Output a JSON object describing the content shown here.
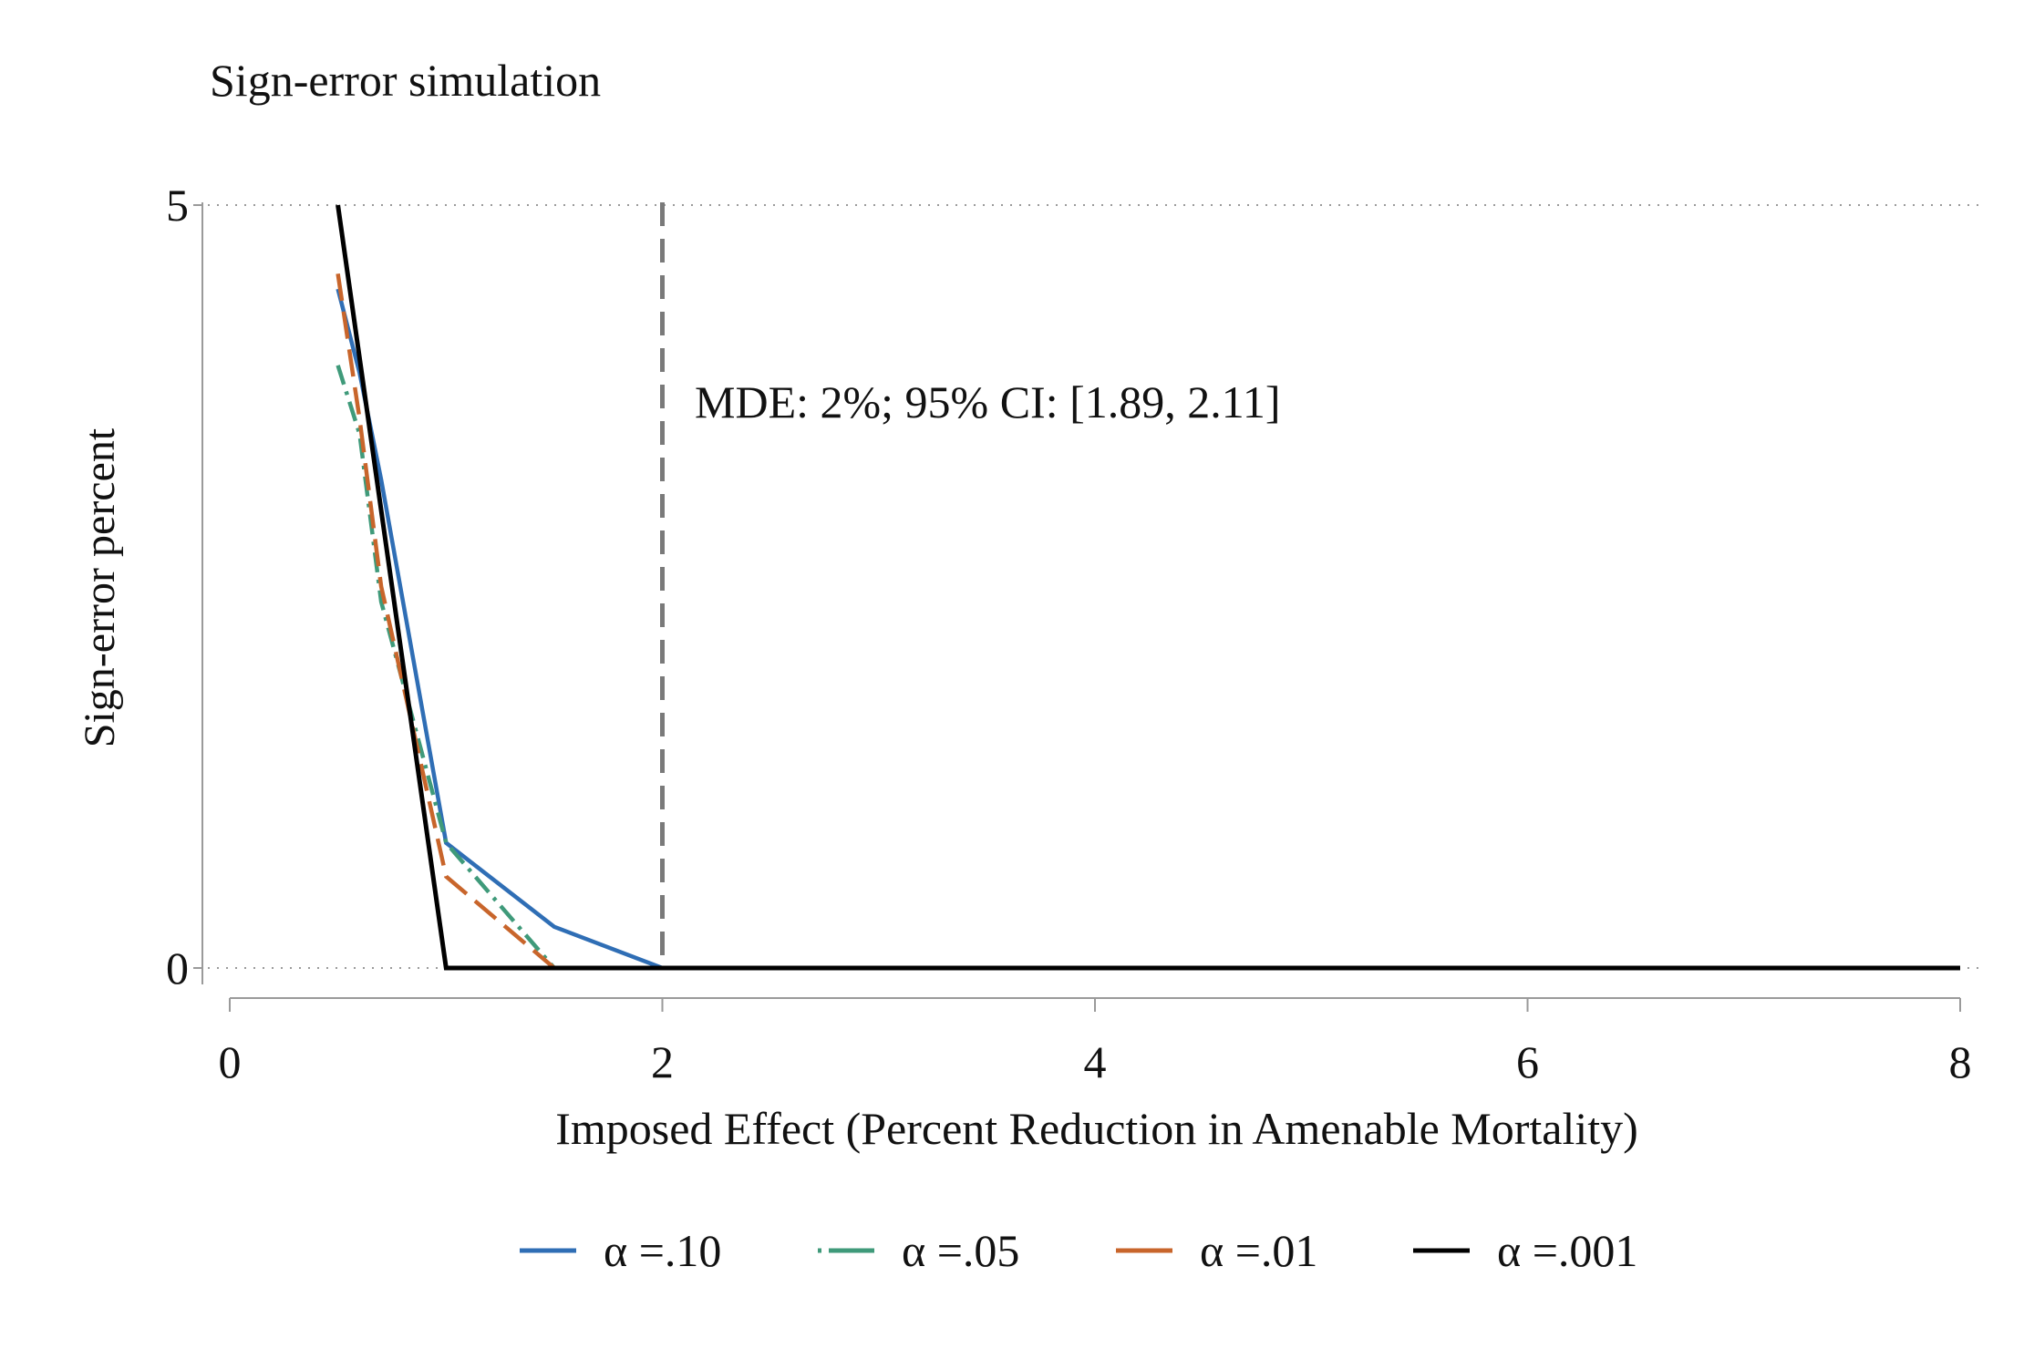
{
  "chart_data": {
    "type": "line",
    "title": "Sign-error simulation",
    "xlabel": "Imposed Effect (Percent Reduction in Amenable Mortality)",
    "ylabel": "Sign-error percent",
    "xlim": [
      0,
      8
    ],
    "ylim": [
      0,
      5
    ],
    "x_ticks": [
      "0",
      "2",
      "4",
      "6",
      "8"
    ],
    "y_ticks": [
      "0",
      "5"
    ],
    "grid": "horizontal dotted at y ticks",
    "legend_position": "bottom",
    "annotation": {
      "text": "MDE: 2%; 95% CI: [1.89, 2.11]",
      "vline_x": 2
    },
    "series": [
      {
        "name": "α =.10",
        "color": "#2f6eb5",
        "style": "solid",
        "x": [
          0.5,
          0.6,
          0.7,
          1.0,
          1.5,
          2,
          3,
          4,
          5,
          6,
          7,
          8
        ],
        "y": [
          4.45,
          3.9,
          3.2,
          0.82,
          0.27,
          0.0,
          0,
          0,
          0,
          0,
          0,
          0
        ]
      },
      {
        "name": "α =.05",
        "color": "#3f9a7a",
        "style": "dashdot",
        "x": [
          0.5,
          0.6,
          0.7,
          1.0,
          1.5,
          2,
          3,
          4,
          5,
          6,
          7,
          8
        ],
        "y": [
          3.95,
          3.5,
          2.4,
          0.82,
          0.0,
          0.0,
          0,
          0,
          0,
          0,
          0,
          0
        ]
      },
      {
        "name": "α =.01",
        "color": "#c8652b",
        "style": "longdash",
        "x": [
          0.5,
          0.6,
          0.7,
          1.0,
          1.5,
          2,
          3,
          4,
          5,
          6,
          7,
          8
        ],
        "y": [
          4.55,
          3.6,
          2.5,
          0.6,
          0.0,
          0.0,
          0,
          0,
          0,
          0,
          0,
          0
        ]
      },
      {
        "name": "α =.001",
        "color": "#000000",
        "style": "solid",
        "x": [
          0.5,
          1.0,
          1.5,
          2,
          3,
          4,
          5,
          6,
          7,
          8
        ],
        "y": [
          5.0,
          0.0,
          0.0,
          0.0,
          0,
          0,
          0,
          0,
          0,
          0
        ]
      }
    ]
  }
}
